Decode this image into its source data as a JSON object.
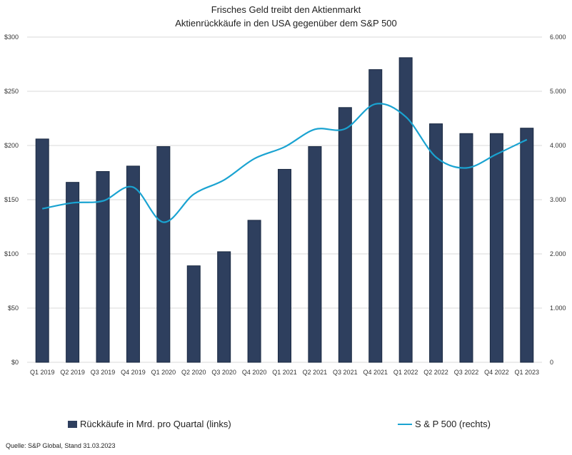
{
  "chart_data": {
    "type": "bar+line",
    "title": "Frisches Geld treibt den Aktienmarkt",
    "subtitle": "Aktienrückkäufe in den USA gegenüber dem S&P 500",
    "categories": [
      "Q1 2019",
      "Q2 2019",
      "Q3 2019",
      "Q4 2019",
      "Q1 2020",
      "Q2 2020",
      "Q3 2020",
      "Q4 2020",
      "Q1 2021",
      "Q2 2021",
      "Q3 2021",
      "Q4 2021",
      "Q1 2022",
      "Q2 2022",
      "Q3 2022",
      "Q4 2022",
      "Q1 2023"
    ],
    "series": [
      {
        "name": "Rückkäufe in Mrd. pro Quartal (links)",
        "axis": "left",
        "kind": "bar",
        "color": "#2e3f5e",
        "values": [
          206,
          166,
          176,
          181,
          199,
          89,
          102,
          131,
          178,
          199,
          235,
          270,
          281,
          220,
          211,
          211,
          216
        ]
      },
      {
        "name": "S & P 500 (rechts)",
        "axis": "right",
        "kind": "line",
        "color": "#1aa3d1",
        "values": [
          2834,
          2942,
          2977,
          3231,
          2585,
          3100,
          3363,
          3756,
          3973,
          4298,
          4308,
          4766,
          4530,
          3785,
          3586,
          3840,
          4109
        ]
      }
    ],
    "yleft": {
      "min": 0,
      "max": 300,
      "ticks": [
        "$0",
        "$50",
        "$100",
        "$150",
        "$200",
        "$250",
        "$300"
      ]
    },
    "yright": {
      "min": 0,
      "max": 6000,
      "ticks": [
        "0",
        "1.000",
        "2.000",
        "3.000",
        "4.000",
        "5.000",
        "6.000"
      ]
    }
  },
  "legend": {
    "bars": "Rückkäufe in Mrd. pro Quartal (links)",
    "line": "S & P 500 (rechts)"
  },
  "source": "Quelle: S&P Global, Stand 31.03.2023"
}
